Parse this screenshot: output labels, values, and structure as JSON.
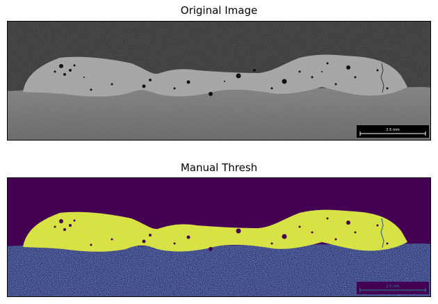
{
  "figure": {
    "panels": [
      {
        "title": "Original Image",
        "colormap": "gray",
        "scale_bar_label": "2.5 mm"
      },
      {
        "title": "Manual Thresh",
        "colormap": "viridis",
        "scale_bar_label": "2.5 mm"
      }
    ]
  },
  "colors": {
    "background_dark": "#2a2a2a",
    "bead_gray": "#a0a0a0",
    "substrate_gray": "#6e6e6e",
    "viridis_purple": "#440154",
    "viridis_blue": "#31688e",
    "viridis_teal": "#21918c",
    "viridis_green": "#5ec962",
    "viridis_yellow": "#fde725"
  }
}
